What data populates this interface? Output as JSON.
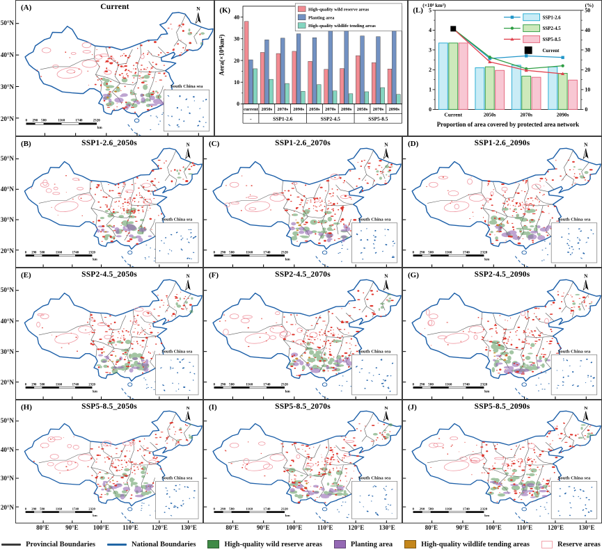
{
  "panels": [
    {
      "letter": "(A)",
      "title": "Current"
    },
    {
      "letter": "(B)",
      "title": "SSP1-2.6_2050s"
    },
    {
      "letter": "(C)",
      "title": "SSP1-2.6_2070s"
    },
    {
      "letter": "(D)",
      "title": "SSP1-2.6_2090s"
    },
    {
      "letter": "(E)",
      "title": "SSP2-4.5_2050s"
    },
    {
      "letter": "(F)",
      "title": "SSP2-4.5_2070s"
    },
    {
      "letter": "(G)",
      "title": "SSP2-4.5_2090s"
    },
    {
      "letter": "(H)",
      "title": "SSP5-8.5_2050s"
    },
    {
      "letter": "(I)",
      "title": "SSP5-8.5_2070s"
    },
    {
      "letter": "(J)",
      "title": "SSP5-8.5_2090s"
    }
  ],
  "map": {
    "north_label": "N",
    "inset_label": "South China sea",
    "lat_ticks": [
      "50°N",
      "40°N",
      "30°N",
      "20°N"
    ],
    "lon_ticks": [
      "80°E",
      "90°E",
      "100°E",
      "110°E",
      "120°E",
      "130°E"
    ],
    "scalebar": {
      "labels": [
        "0",
        "290",
        "580",
        "1160",
        "1740",
        "2320"
      ],
      "unit": "km"
    }
  },
  "chart_data": [
    {
      "panel": "(K)",
      "type": "bar",
      "ylabel": "Aera(×10⁴km²)",
      "ylim": [
        0,
        45
      ],
      "yticks": [
        0,
        10,
        20,
        30,
        40
      ],
      "categories": [
        "current",
        "2050s",
        "2070s",
        "2090s",
        "2050s",
        "2070s",
        "2090s",
        "2050s",
        "2070s",
        "2090s"
      ],
      "group_labels": [
        {
          "label": "-",
          "span": 1
        },
        {
          "label": "SSP1-2.6",
          "span": 3
        },
        {
          "label": "SSP2-4.5",
          "span": 3
        },
        {
          "label": "SSP5-8.5",
          "span": 3
        }
      ],
      "series": [
        {
          "name": "High-quality wild reserve areas",
          "color": "#F28B92",
          "values": [
            38.0,
            23.7,
            23.2,
            24.2,
            19.6,
            15.9,
            16.3,
            22.2,
            19.0,
            16.1
          ]
        },
        {
          "name": "Planting area",
          "color": "#7291C2",
          "values": [
            20.3,
            29.5,
            30.3,
            32.3,
            30.5,
            35.6,
            34.8,
            31.3,
            31.0,
            34.3
          ]
        },
        {
          "name": "High-quality wildlife tending areas",
          "color": "#84D5C0",
          "values": [
            16.2,
            11.3,
            9.4,
            5.8,
            8.9,
            6.0,
            4.7,
            5.6,
            7.5,
            4.4
          ]
        }
      ],
      "legend_position": "top-right",
      "grid": false
    },
    {
      "panel": "(L)",
      "type": "bar+line",
      "left_axis_label": "(×10⁴ km²)",
      "right_axis_label": "(%)",
      "left_ylim": [
        0,
        5
      ],
      "right_ylim": [
        0,
        50
      ],
      "left_yticks": [
        0,
        1,
        2,
        3,
        4,
        5
      ],
      "right_yticks": [
        0,
        10,
        20,
        30,
        40,
        50
      ],
      "categories": [
        "Current",
        "2050s",
        "2070s",
        "2090s"
      ],
      "bar_series": [
        {
          "name": "SSP1-2.6",
          "fill": "#C9ECF6",
          "border": "#2BAED4",
          "values": [
            3.35,
            2.1,
            2.23,
            2.15
          ]
        },
        {
          "name": "SSP2-4.5",
          "fill": "#CDE9BB",
          "border": "#3AA14B",
          "values": [
            3.35,
            2.15,
            1.68,
            1.82
          ]
        },
        {
          "name": "SSP5-8.5",
          "fill": "#F8C7D3",
          "border": "#E56A80",
          "values": [
            3.35,
            1.97,
            1.62,
            1.48
          ]
        }
      ],
      "line_series": [
        {
          "name": "SSP1-2.6",
          "color": "#2196C9",
          "marker": "square",
          "values_pct": [
            40.7,
            25.7,
            27.0,
            26.2
          ]
        },
        {
          "name": "SSP2-4.5",
          "color": "#2E9E44",
          "marker": "circle",
          "values_pct": [
            40.7,
            26.4,
            20.5,
            22.0
          ]
        },
        {
          "name": "SSP5-8.5",
          "color": "#E0424F",
          "marker": "triangle",
          "values_pct": [
            40.7,
            24.0,
            19.7,
            18.0
          ]
        }
      ],
      "current_marker": {
        "name": "Current",
        "color": "#000000",
        "value_pct": 40.7
      },
      "caption": "Proportion of area covered by protected area network",
      "legend_position": "top-right",
      "grid": false
    }
  ],
  "legend": {
    "items": [
      {
        "label": "Provincial Boundaries",
        "type": "line",
        "color": "#3A3A3A"
      },
      {
        "label": "National Boundaries",
        "type": "line",
        "color": "#2166A5"
      },
      {
        "label": "High-quality wild reserve areas",
        "type": "fill",
        "color": "#3F8A46"
      },
      {
        "label": "Planting area",
        "type": "fill",
        "color": "#9468B4"
      },
      {
        "label": "High-quality wildlife tending areas",
        "type": "fill",
        "color": "#C4861B"
      },
      {
        "label": "Reserve areas",
        "type": "outline",
        "color": "#F2A3AC"
      }
    ]
  },
  "colors": {
    "national_boundary": "#1C5FA8",
    "provincial_boundary": "#4A4A4A",
    "reserve_red": "#DE2A20",
    "reserve_outline_pink": "#F09AA4",
    "wild_green": "#4A8C4A",
    "planting_purple": "#9468B4",
    "tending_orange": "#C4861B"
  }
}
